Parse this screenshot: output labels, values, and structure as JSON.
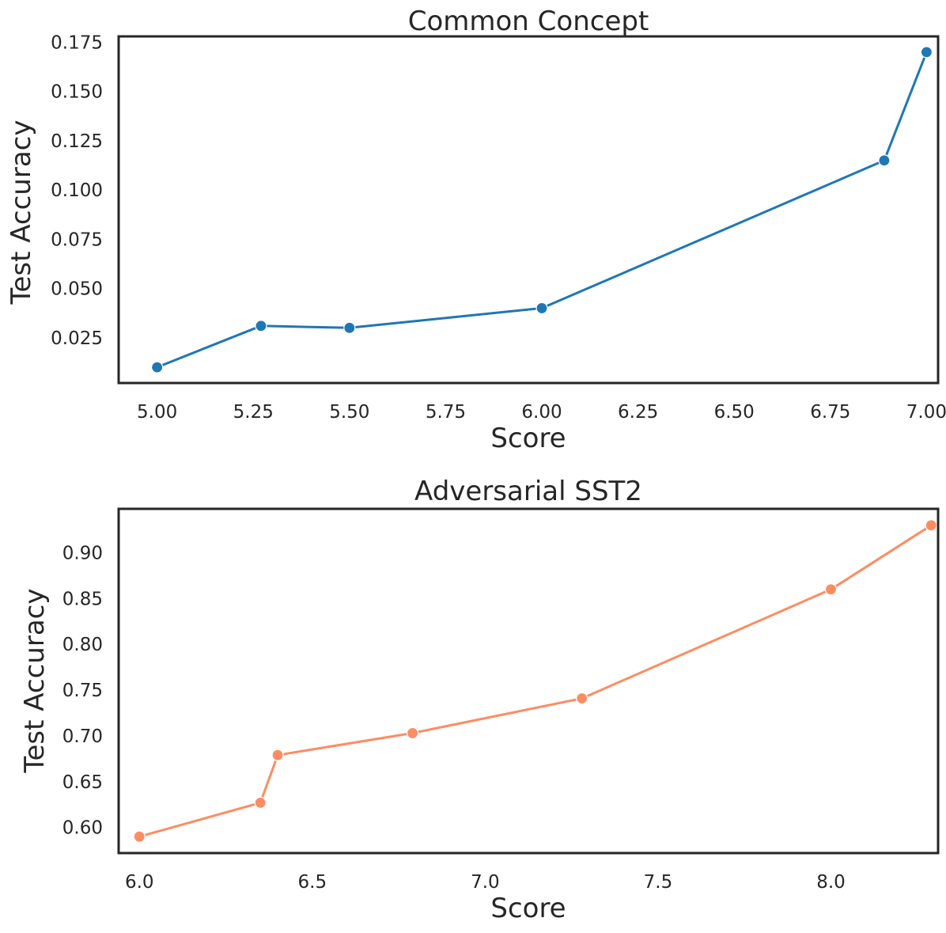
{
  "chart_data": [
    {
      "type": "line",
      "title": "Common Concept",
      "xlabel": "Score",
      "ylabel": "Test Accuracy",
      "color": "#1f77b4",
      "xlim": [
        4.9,
        7.03
      ],
      "ylim": [
        0.002,
        0.178
      ],
      "xticks": [
        5.0,
        5.25,
        5.5,
        5.75,
        6.0,
        6.25,
        6.5,
        6.75,
        7.0
      ],
      "xtick_labels": [
        "5.00",
        "5.25",
        "5.50",
        "5.75",
        "6.00",
        "6.25",
        "6.50",
        "6.75",
        "7.00"
      ],
      "yticks": [
        0.025,
        0.05,
        0.075,
        0.1,
        0.125,
        0.15,
        0.175
      ],
      "ytick_labels": [
        "0.025",
        "0.050",
        "0.075",
        "0.100",
        "0.125",
        "0.150",
        "0.175"
      ],
      "x": [
        5.0,
        5.27,
        5.5,
        6.0,
        6.89,
        7.0
      ],
      "y": [
        0.01,
        0.031,
        0.03,
        0.04,
        0.115,
        0.17
      ],
      "grid": false
    },
    {
      "type": "line",
      "title": "Adversarial SST2",
      "xlabel": "Score",
      "ylabel": "Test Accuracy",
      "color": "#fc8d62",
      "xlim": [
        5.94,
        8.31
      ],
      "ylim": [
        0.572,
        0.948
      ],
      "xticks": [
        6.0,
        6.5,
        7.0,
        7.5,
        8.0
      ],
      "xtick_labels": [
        "6.0",
        "6.5",
        "7.0",
        "7.5",
        "8.0"
      ],
      "yticks": [
        0.6,
        0.65,
        0.7,
        0.75,
        0.8,
        0.85,
        0.9
      ],
      "ytick_labels": [
        "0.60",
        "0.65",
        "0.70",
        "0.75",
        "0.80",
        "0.85",
        "0.90"
      ],
      "x": [
        6.0,
        6.35,
        6.4,
        6.79,
        7.28,
        8.0,
        8.29
      ],
      "y": [
        0.59,
        0.627,
        0.679,
        0.703,
        0.741,
        0.86,
        0.93
      ],
      "grid": false
    }
  ]
}
